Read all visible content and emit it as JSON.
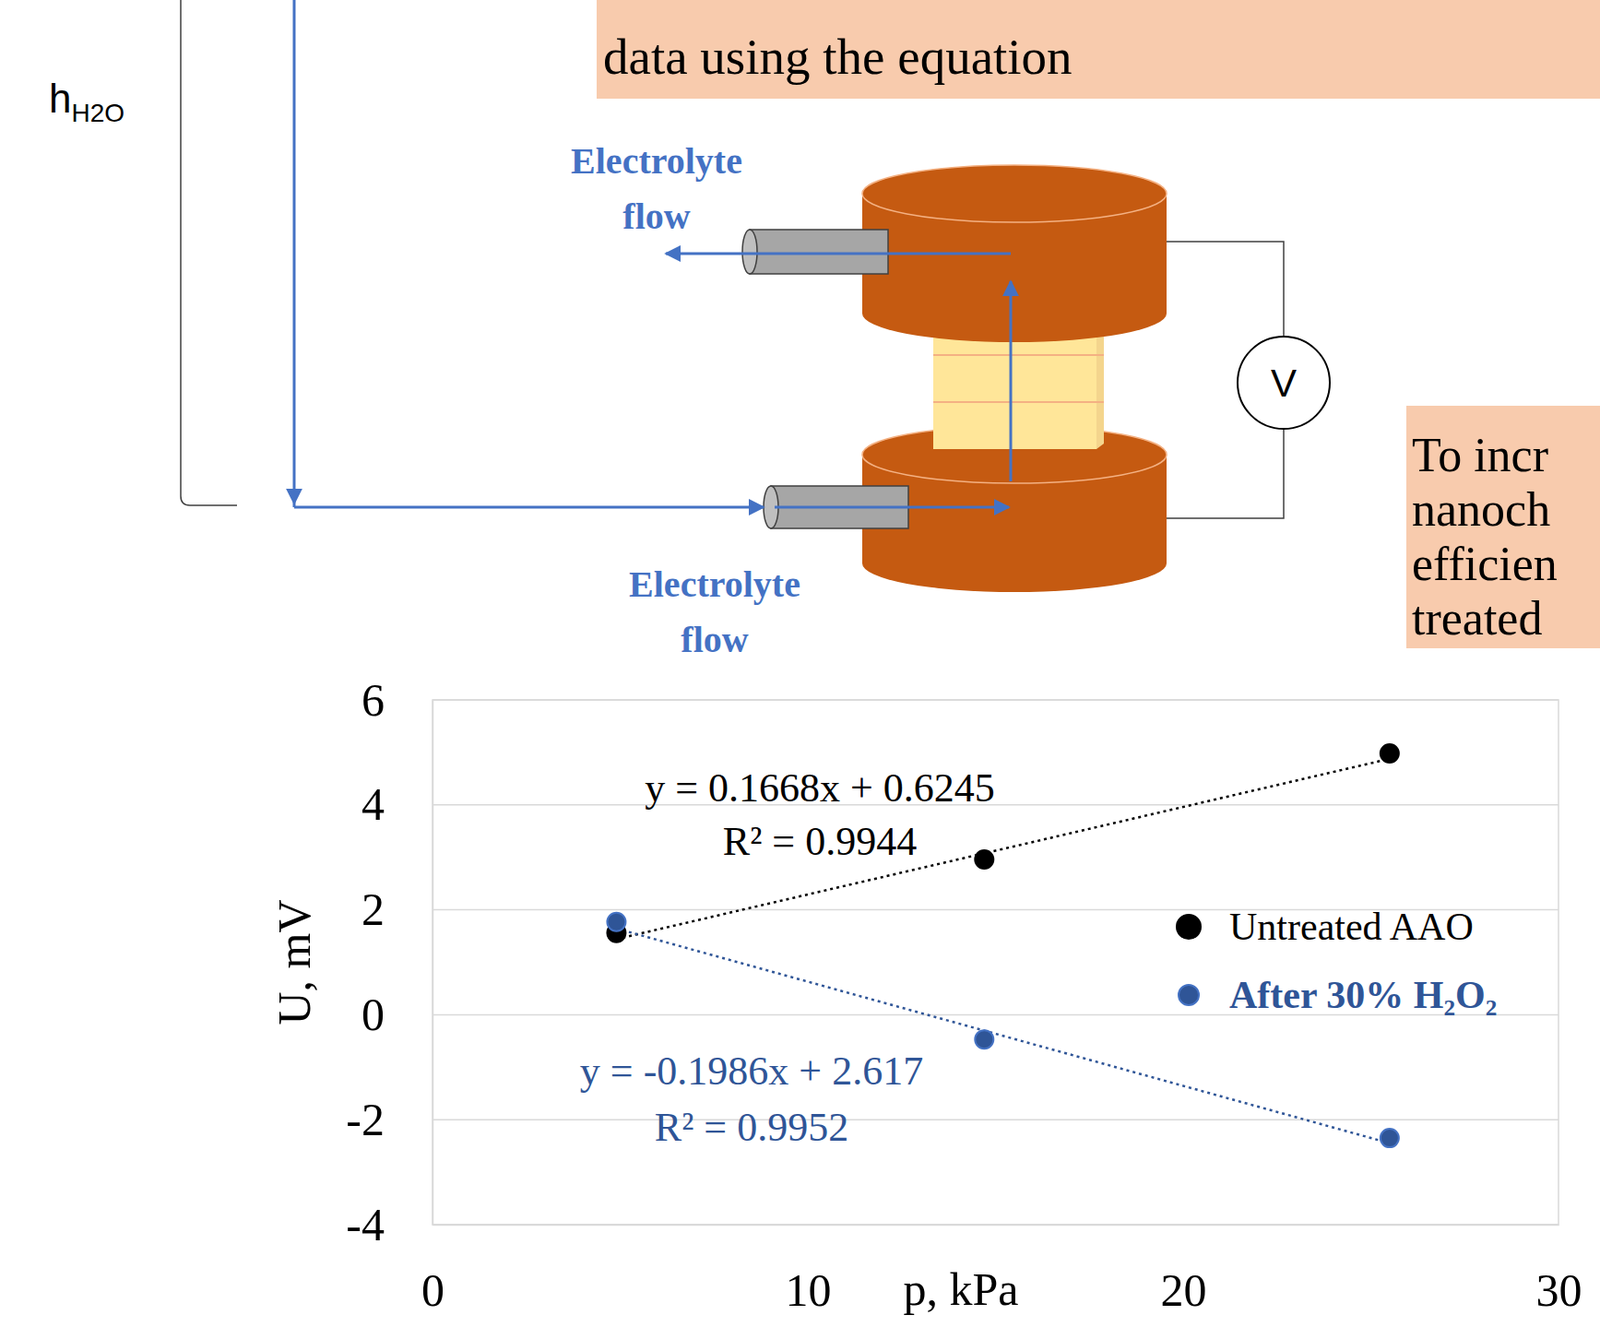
{
  "chart_data": {
    "type": "scatter",
    "x_label": "p, kPa",
    "y_label": "U, mV",
    "xlim": [
      0,
      30
    ],
    "ylim": [
      -4,
      6
    ],
    "xticks": [
      0,
      10,
      20,
      30
    ],
    "yticks": [
      -4,
      -2,
      0,
      2,
      4,
      6
    ],
    "grid": true,
    "legend": "right",
    "x": [
      4.9,
      14.7,
      25.5
    ],
    "series": [
      {
        "name": "Untreated AAO",
        "color": "#000000",
        "marker": "circle",
        "line_style": "dotted",
        "values": [
          1.56,
          2.96,
          4.98
        ],
        "trendline": {
          "slope": 0.1668,
          "intercept": 0.6245,
          "equation": "y = 0.1668x + 0.6245",
          "r_squared": "R² = 0.9944"
        }
      },
      {
        "name": "After 30% H₂O₂",
        "color": "#2f5597",
        "marker": "circle",
        "line_style": "dotted",
        "values": [
          1.77,
          -0.47,
          -2.35
        ],
        "trendline": {
          "slope": -0.1986,
          "intercept": 2.617,
          "equation": "y = -0.1986x + 2.617",
          "r_squared": "R² = 0.9952"
        }
      }
    ]
  },
  "diagram": {
    "top_note": "data using the equation",
    "height_label": {
      "main": "h",
      "sub": "H2O"
    },
    "flow_label_top": [
      "Electrolyte",
      "flow"
    ],
    "flow_label_bottom": [
      "Electrolyte",
      "flow"
    ],
    "voltmeter": "V",
    "side_note": [
      "To incr",
      "nanoch",
      "efficien",
      "treated"
    ]
  }
}
